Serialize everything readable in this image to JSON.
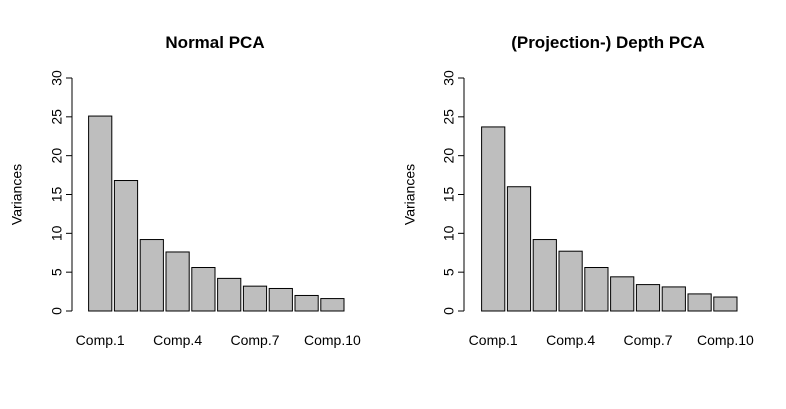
{
  "chart_data": [
    {
      "type": "bar",
      "title": "Normal PCA",
      "xlabel": "",
      "ylabel": "Variances",
      "ylim": [
        0,
        30
      ],
      "yticks": [
        "0",
        "5",
        "10",
        "15",
        "20",
        "25",
        "30"
      ],
      "categories": [
        "Comp.1",
        "Comp.2",
        "Comp.3",
        "Comp.4",
        "Comp.5",
        "Comp.6",
        "Comp.7",
        "Comp.8",
        "Comp.9",
        "Comp.10"
      ],
      "shown_category_labels": [
        "Comp.1",
        "Comp.4",
        "Comp.7",
        "Comp.10"
      ],
      "values": [
        25.1,
        16.8,
        9.2,
        7.6,
        5.6,
        4.2,
        3.2,
        2.9,
        2.0,
        1.6
      ],
      "bar_color": "#bebebe",
      "bar_border": "#000000",
      "grid": false
    },
    {
      "type": "bar",
      "title": "(Projection-) Depth PCA",
      "xlabel": "",
      "ylabel": "Variances",
      "ylim": [
        0,
        30
      ],
      "yticks": [
        "0",
        "5",
        "10",
        "15",
        "20",
        "25",
        "30"
      ],
      "categories": [
        "Comp.1",
        "Comp.2",
        "Comp.3",
        "Comp.4",
        "Comp.5",
        "Comp.6",
        "Comp.7",
        "Comp.8",
        "Comp.9",
        "Comp.10"
      ],
      "shown_category_labels": [
        "Comp.1",
        "Comp.4",
        "Comp.7",
        "Comp.10"
      ],
      "values": [
        23.7,
        16.0,
        9.2,
        7.7,
        5.6,
        4.4,
        3.4,
        3.1,
        2.2,
        1.8
      ],
      "bar_color": "#bebebe",
      "bar_border": "#000000",
      "grid": false
    }
  ]
}
